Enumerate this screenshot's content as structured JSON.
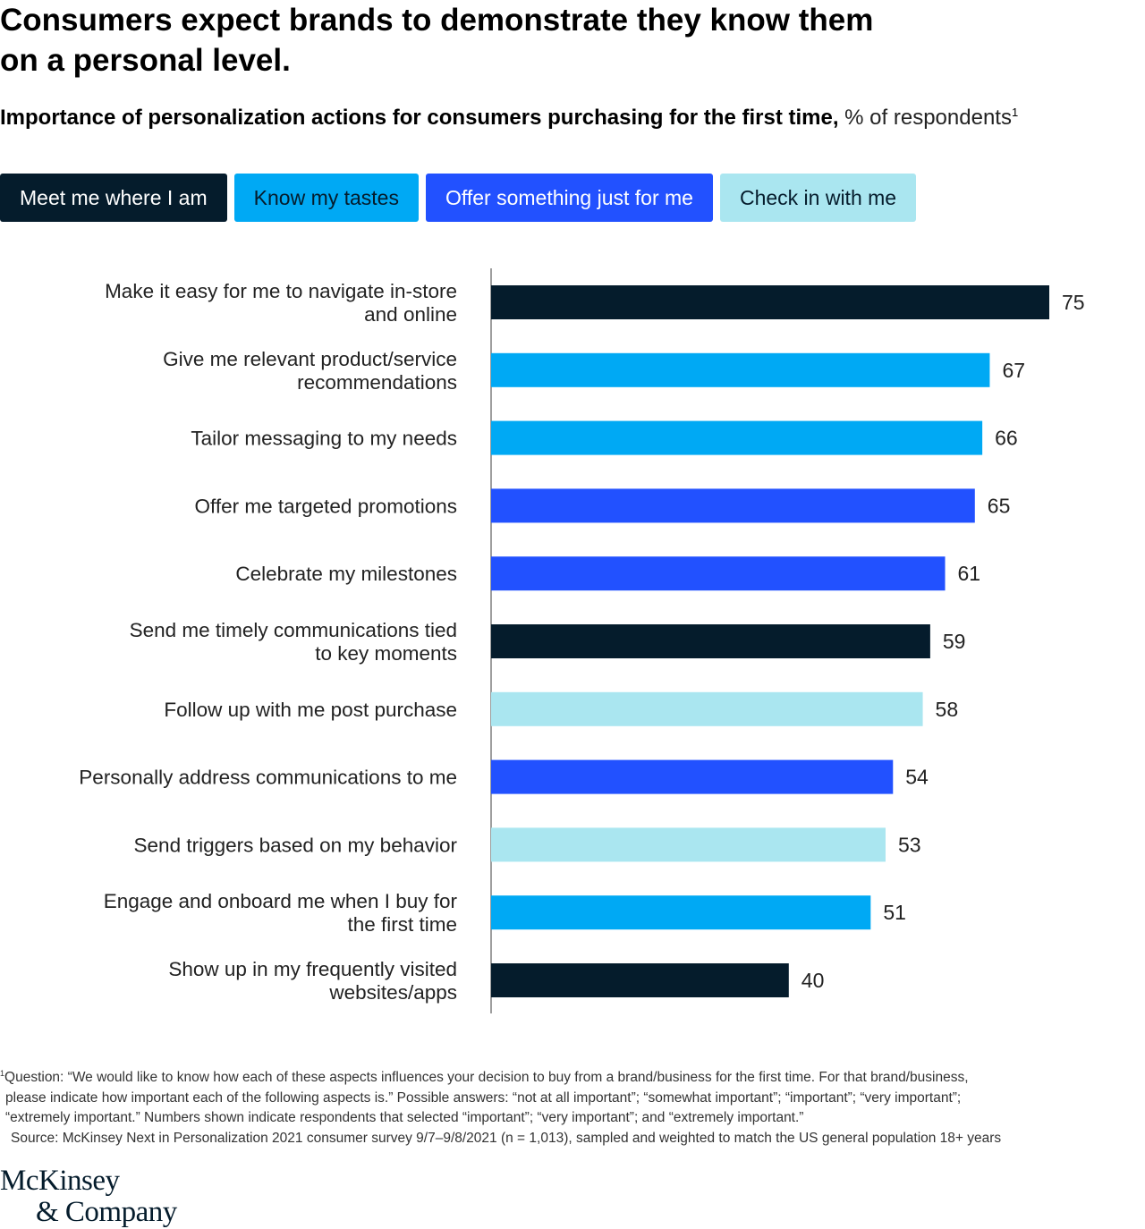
{
  "header": {
    "title": "Consumers expect brands to demonstrate they know them on a personal level.",
    "subtitle_main": "Importance of personalization actions for consumers purchasing for the first time,",
    "subtitle_unit": "% of respondents",
    "subtitle_sup": "1"
  },
  "legend": [
    {
      "key": "meet",
      "label": "Meet me where I am",
      "color": "#051c2c",
      "text_color": "#ffffff"
    },
    {
      "key": "tastes",
      "label": "Know my tastes",
      "color": "#00a9f4",
      "text_color": "#051c2c"
    },
    {
      "key": "offer",
      "label": "Offer something just for me",
      "color": "#2251ff",
      "text_color": "#ffffff"
    },
    {
      "key": "checkin",
      "label": "Check in with me",
      "color": "#aae6f0",
      "text_color": "#051c2c"
    }
  ],
  "chart_data": {
    "type": "bar",
    "orientation": "horizontal",
    "title": "Importance of personalization actions for consumers purchasing for the first time",
    "unit": "% of respondents",
    "xlim": [
      0,
      75
    ],
    "grid": false,
    "legend_position": "top",
    "categories": [
      [
        "Make it easy for me to navigate in-store",
        "and online"
      ],
      [
        "Give me relevant product/service",
        "recommendations"
      ],
      [
        "Tailor messaging to my needs"
      ],
      [
        "Offer me targeted promotions"
      ],
      [
        "Celebrate my milestones"
      ],
      [
        "Send me timely communications tied",
        "to key moments"
      ],
      [
        "Follow up with me post purchase"
      ],
      [
        "Personally address communications to me"
      ],
      [
        "Send triggers based on my behavior"
      ],
      [
        "Engage and onboard me when I buy for",
        "the first time"
      ],
      [
        "Show up in my frequently visited",
        "websites/apps"
      ]
    ],
    "values": [
      75,
      67,
      66,
      65,
      61,
      59,
      58,
      54,
      53,
      51,
      40
    ],
    "groups": [
      "meet",
      "tastes",
      "tastes",
      "offer",
      "offer",
      "meet",
      "checkin",
      "offer",
      "checkin",
      "tastes",
      "meet"
    ]
  },
  "footnote": {
    "sup": "1",
    "line1": "Question: “We would like to know how each of these aspects influences your decision to buy from a brand/business for the first time. For that brand/business,",
    "line2": "please indicate how important each of the following aspects is.” Possible answers: “not at all important”; “somewhat important”; “important”; “very important”;",
    "line3": "“extremely important.” Numbers shown indicate respondents that selected “important”; “very important”; and “extremely important.”",
    "source": "Source: McKinsey Next in Personalization 2021 consumer survey 9/7–9/8/2021 (n = 1,013), sampled and weighted to match the US general population 18+ years"
  },
  "logo": {
    "line1": "McKinsey",
    "line2": "& Company"
  }
}
